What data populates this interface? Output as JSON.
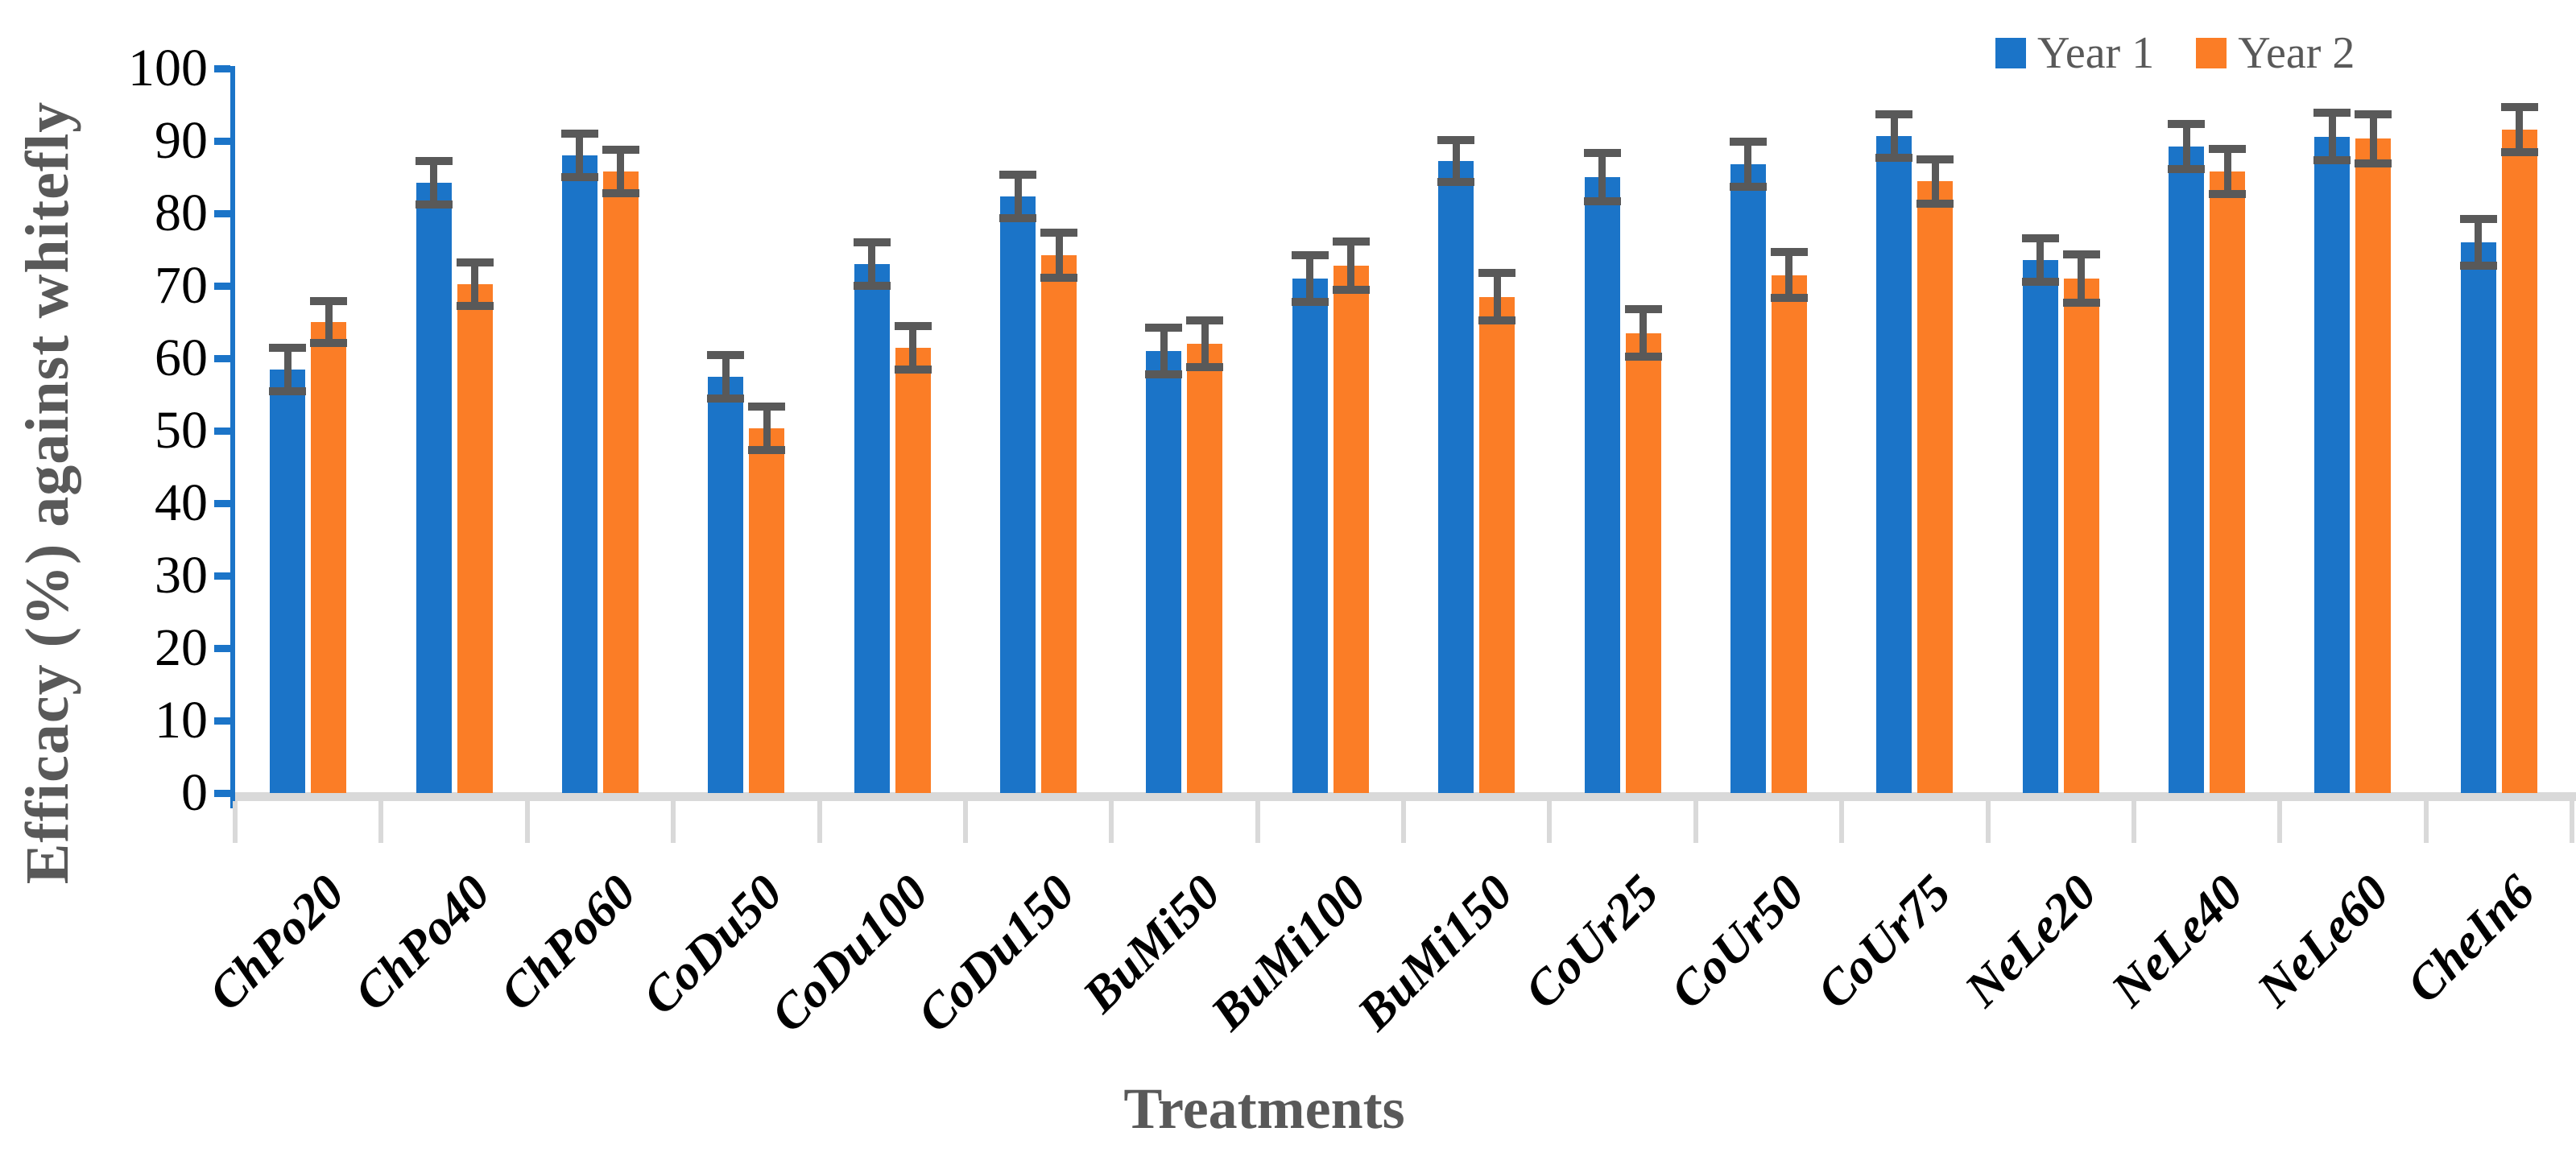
{
  "chart_data": {
    "type": "bar",
    "title": "",
    "xlabel": "Treatments",
    "ylabel": "Efficacy (%) against whitefly",
    "ylim": [
      0,
      100
    ],
    "y_tick_step": 10,
    "y_tick_labels": [
      "0",
      "10",
      "20",
      "30",
      "40",
      "50",
      "60",
      "70",
      "80",
      "90",
      "100"
    ],
    "grid": false,
    "legend_position": "top-right",
    "categories": [
      "ChPo20",
      "ChPo40",
      "ChPo60",
      "CoDu50",
      "CoDu100",
      "CoDu150",
      "BuMi50",
      "BuMi100",
      "BuMi150",
      "CoUr25",
      "CoUr50",
      "CoUr75",
      "NeLe20",
      "NeLe40",
      "NeLe60",
      "CheIn6"
    ],
    "series": [
      {
        "name": "Year 1",
        "color": "#1B74C8",
        "values": [
          58.5,
          84.2,
          88.0,
          57.5,
          73.0,
          82.3,
          61.0,
          71.0,
          87.2,
          85.0,
          86.8,
          90.7,
          73.6,
          89.2,
          90.6,
          76.0
        ],
        "errors": [
          3.0,
          3.0,
          3.0,
          3.0,
          3.0,
          3.0,
          3.2,
          3.2,
          2.9,
          3.3,
          3.1,
          3.0,
          3.0,
          3.1,
          3.3,
          3.2
        ]
      },
      {
        "name": "Year 2",
        "color": "#FB7D26",
        "values": [
          65.0,
          70.2,
          85.8,
          50.3,
          61.4,
          74.2,
          62.0,
          72.8,
          68.5,
          63.5,
          71.5,
          84.4,
          71.0,
          85.8,
          90.3,
          91.6
        ],
        "errors": [
          2.9,
          3.0,
          3.0,
          3.0,
          3.0,
          3.1,
          3.2,
          3.3,
          3.3,
          3.3,
          3.2,
          3.1,
          3.3,
          3.1,
          3.4,
          3.1
        ]
      }
    ]
  },
  "colors": {
    "axis_blue": "#1B74C8",
    "baseline_gray": "#D9D9D9",
    "error_bar": "#595959",
    "axis_title_text": "#595959",
    "tick_label_text": "#000000",
    "legend_text": "#595959"
  }
}
